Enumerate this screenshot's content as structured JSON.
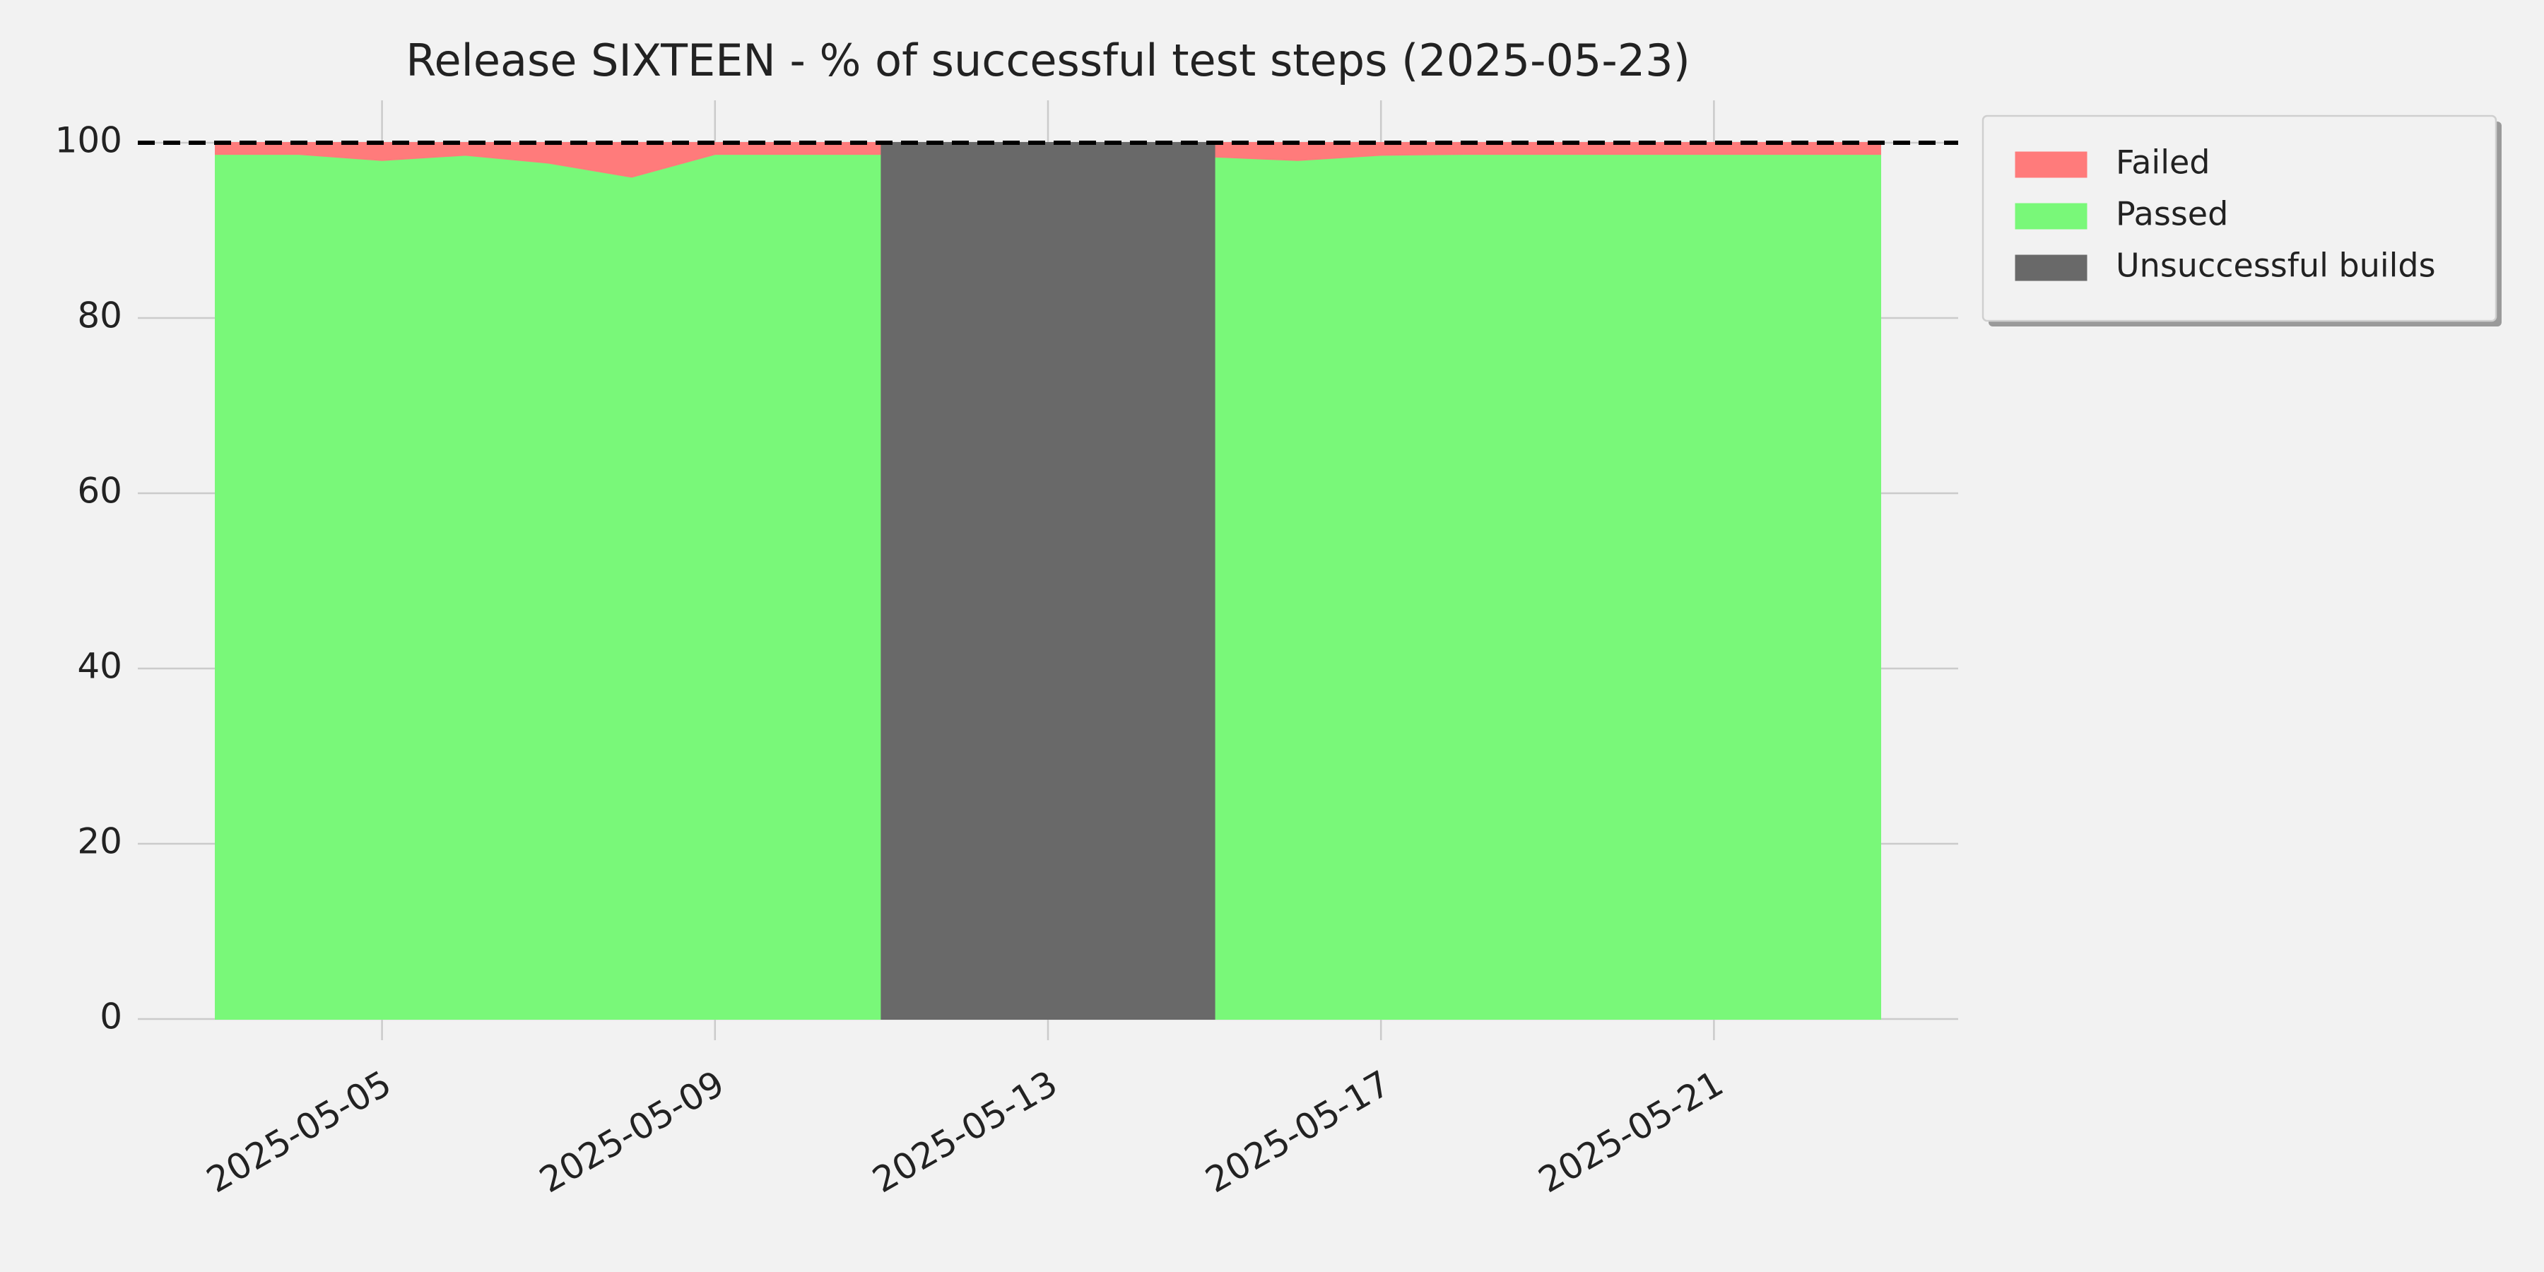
{
  "chart_data": {
    "type": "area",
    "title": "Release SIXTEEN - % of successful test steps (2025-05-23)",
    "x": [
      "2025-05-03",
      "2025-05-04",
      "2025-05-05",
      "2025-05-06",
      "2025-05-07",
      "2025-05-08",
      "2025-05-09",
      "2025-05-10",
      "2025-05-11",
      "2025-05-12",
      "2025-05-13",
      "2025-05-14",
      "2025-05-15",
      "2025-05-16",
      "2025-05-17",
      "2025-05-18",
      "2025-05-19",
      "2025-05-20",
      "2025-05-21",
      "2025-05-22",
      "2025-05-23"
    ],
    "series": [
      {
        "name": "Failed",
        "color": "#ff7b7b",
        "stacked": true,
        "values": [
          1.3,
          1.3,
          2.0,
          1.4,
          2.3,
          3.9,
          1.3,
          1.3,
          1.3,
          null,
          null,
          null,
          1.6,
          2.0,
          1.4,
          1.3,
          1.3,
          1.3,
          1.3,
          1.3,
          1.3
        ]
      },
      {
        "name": "Passed",
        "color": "#79f879",
        "stacked": true,
        "values": [
          98.7,
          98.7,
          98.0,
          98.6,
          97.7,
          96.1,
          98.7,
          98.7,
          98.7,
          null,
          null,
          null,
          98.4,
          98.0,
          98.6,
          98.7,
          98.7,
          98.7,
          98.7,
          98.7,
          98.7
        ]
      },
      {
        "name": "Unsuccessful builds",
        "color": "#696969",
        "stacked": false,
        "values": [
          null,
          null,
          null,
          null,
          null,
          null,
          null,
          null,
          100,
          100,
          100,
          100,
          100,
          null,
          null,
          null,
          null,
          null,
          null,
          null,
          null
        ]
      }
    ],
    "reference_line": 100,
    "ylim": [
      0,
      100
    ],
    "yticks": [
      0,
      20,
      40,
      60,
      80,
      100
    ],
    "xticks": [
      "2025-05-05",
      "2025-05-09",
      "2025-05-13",
      "2025-05-17",
      "2025-05-21"
    ],
    "grid": true,
    "legend": "outside-right"
  }
}
